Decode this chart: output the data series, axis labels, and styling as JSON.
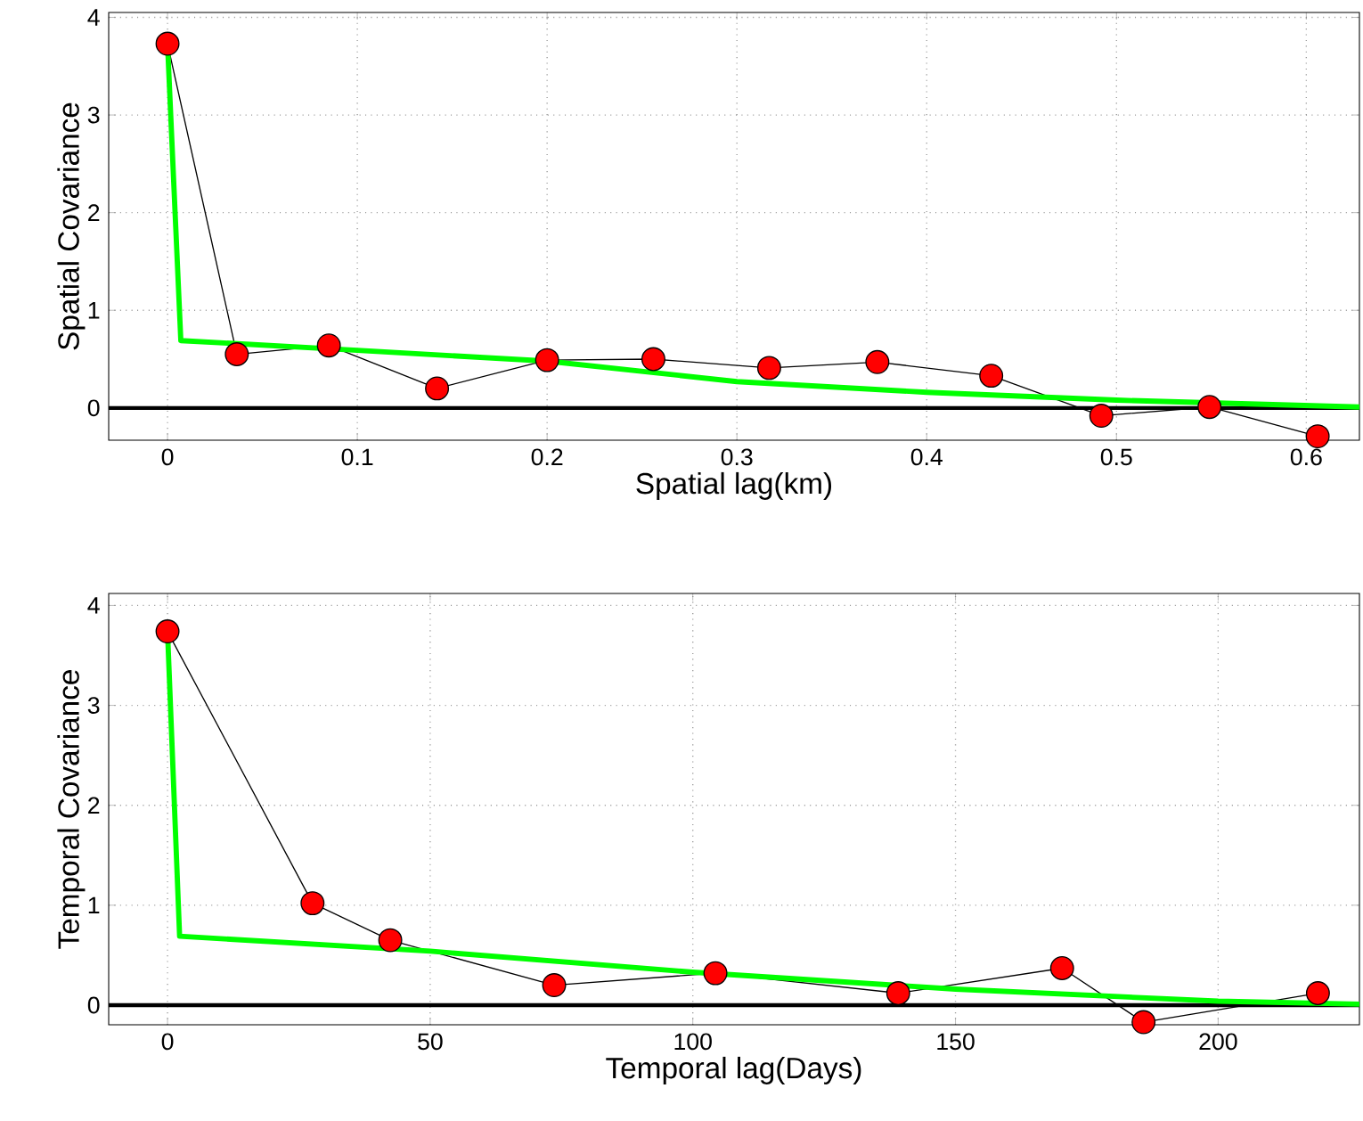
{
  "chart_data": [
    {
      "type": "line",
      "xlabel": "Spatial lag(km)",
      "ylabel": "Spatial Covariance",
      "xlim": [
        -0.031,
        0.628
      ],
      "ylim": [
        -0.33,
        4.05
      ],
      "xticks": [
        0,
        0.1,
        0.2,
        0.3,
        0.4,
        0.5,
        0.6
      ],
      "yticks": [
        0,
        1,
        2,
        3,
        4
      ],
      "grid": true,
      "marker": "circle",
      "line_style": "solid",
      "ref_lines": [
        {
          "axis": "y",
          "value": 0,
          "color": "#000000"
        }
      ],
      "series": [
        {
          "color": "#ff0000",
          "x": [
            0,
            0.0365,
            0.085,
            0.142,
            0.2,
            0.256,
            0.317,
            0.374,
            0.434,
            0.492,
            0.549,
            0.606
          ],
          "values": [
            3.73,
            0.55,
            0.64,
            0.2,
            0.49,
            0.5,
            0.41,
            0.47,
            0.33,
            -0.08,
            0.01,
            -0.29
          ]
        },
        {
          "color": "#00ff00",
          "marker": "none",
          "x": [
            0,
            0.007,
            0.1,
            0.2,
            0.3,
            0.4,
            0.5,
            0.628
          ],
          "values": [
            3.73,
            0.69,
            0.59,
            0.48,
            0.27,
            0.16,
            0.08,
            0.01
          ]
        }
      ]
    },
    {
      "type": "line",
      "xlabel": "Temporal lag(Days)",
      "ylabel": "Temporal Covariance",
      "xlim": [
        -11.2,
        226.9
      ],
      "ylim": [
        -0.196,
        4.12
      ],
      "xticks": [
        0,
        50,
        100,
        150,
        200
      ],
      "yticks": [
        0,
        1,
        2,
        3,
        4
      ],
      "grid": true,
      "marker": "circle",
      "line_style": "solid",
      "ref_lines": [
        {
          "axis": "y",
          "value": 0,
          "color": "#000000"
        }
      ],
      "series": [
        {
          "color": "#ff0000",
          "x": [
            0,
            27.6,
            42.4,
            73.6,
            104.3,
            139.1,
            170.3,
            185.8,
            219.0
          ],
          "values": [
            3.74,
            1.02,
            0.65,
            0.2,
            0.32,
            0.12,
            0.37,
            -0.17,
            0.12
          ]
        },
        {
          "color": "#00ff00",
          "marker": "none",
          "x": [
            0,
            2.3,
            50,
            100,
            150,
            200,
            226.9
          ],
          "values": [
            3.74,
            0.69,
            0.54,
            0.33,
            0.16,
            0.04,
            0.01
          ]
        }
      ]
    }
  ]
}
